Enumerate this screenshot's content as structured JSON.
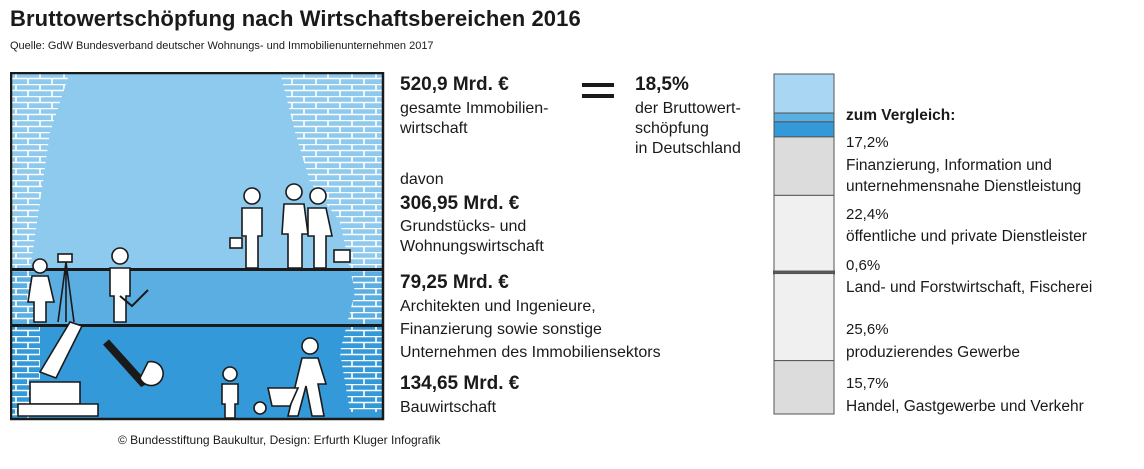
{
  "title": "Bruttowertschöpfung nach Wirtschaftsbereichen 2016",
  "source": "Quelle: GdW Bundesverband deutscher Wohnungs- und Immobilienunternehmen 2017",
  "footer": "© Bundesstiftung Baukultur, Design: Erfurth Kluger Infografik",
  "total": {
    "value": "520,9 Mrd. €",
    "label_line1": "gesamte Immobilien-",
    "label_line2": "wirtschaft"
  },
  "share": {
    "value": "18,5%",
    "label_line1": "der Bruttowert-",
    "label_line2": "schöpfung",
    "label_line3": "in Deutschland"
  },
  "davon": "davon",
  "segments": [
    {
      "value": "306,95 Mrd. €",
      "lines": [
        "Grundstücks- und",
        "Wohnungswirtschaft"
      ],
      "color": "#8ec9ee"
    },
    {
      "value": "79,25 Mrd. €",
      "lines": [
        "Architekten und Ingenieure,",
        "Finanzierung sowie sonstige",
        "Unternehmen des Immobiliensektors"
      ],
      "color": "#5aaee2"
    },
    {
      "value": "134,65 Mrd. €",
      "lines": [
        "Bauwirtschaft"
      ],
      "color": "#3499d8"
    }
  ],
  "comparison_title": "zum Vergleich:",
  "comparison": [
    {
      "pct": "17,2%",
      "lines": [
        "Finanzierung, Information und",
        "unternehmensnahe Dienstleistung"
      ]
    },
    {
      "pct": "22,4%",
      "lines": [
        "öffentliche und private Dienstleister"
      ]
    },
    {
      "pct": "0,6%",
      "lines": [
        "Land- und Forstwirtschaft, Fischerei"
      ]
    },
    {
      "pct": "25,6%",
      "lines": [
        "produzierendes Gewerbe"
      ]
    },
    {
      "pct": "15,7%",
      "lines": [
        "Handel, Gastgewerbe und Verkehr"
      ]
    }
  ],
  "chart_data": {
    "type": "bar",
    "stacked": true,
    "categories": [
      "Immobilienwirtschaft",
      "Finanzierung, Information und unternehmensnahe Dienstleistung",
      "öffentliche und private Dienstleister",
      "Land- und Forstwirtschaft, Fischerei",
      "produzierendes Gewerbe",
      "Handel, Gastgewerbe und Verkehr"
    ],
    "values": [
      18.5,
      17.2,
      22.4,
      0.6,
      25.6,
      15.7
    ],
    "sub_series": [
      {
        "name": "Grundstücks- und Wohnungswirtschaft",
        "value": 306.95
      },
      {
        "name": "Architekten und Ingenieure, Finanzierung sowie sonstige Unternehmen des Immobiliensektors",
        "value": 79.25
      },
      {
        "name": "Bauwirtschaft",
        "value": 134.65
      }
    ],
    "total": 520.9,
    "colors": {
      "immobilien_total": "#a9d6f3",
      "comparison_fill": "#dcdcdc",
      "comparison_light": "#f0f0f0",
      "outline": "#555555"
    }
  }
}
